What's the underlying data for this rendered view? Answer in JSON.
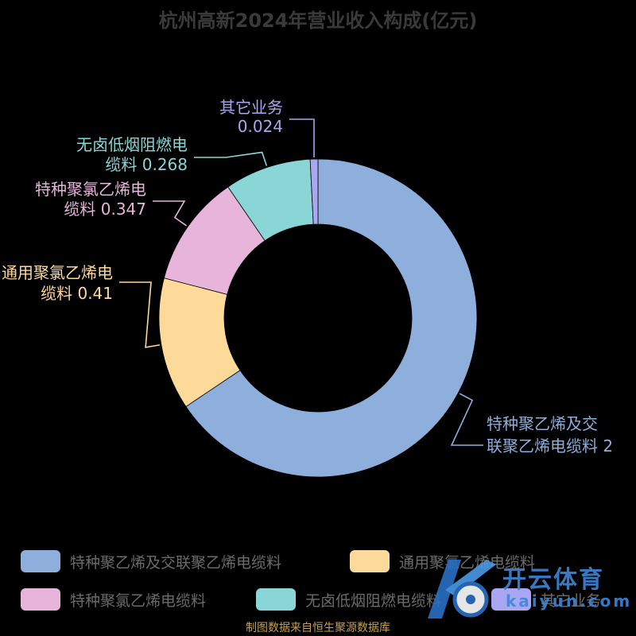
{
  "chart_data": {
    "type": "pie",
    "title": "杭州高新2024年营业收入构成(亿元)",
    "style": "donut",
    "slices": [
      {
        "name": "特种聚乙烯及交联聚乙烯电缆料",
        "value": 2,
        "label_line1": "特种聚乙烯及交",
        "label_line2": "联聚乙烯电缆料 2",
        "color": "#8eaedb"
      },
      {
        "name": "通用聚氯乙烯电缆料",
        "value": 0.41,
        "label_line1": "通用聚氯乙烯电",
        "label_line2": "缆料 0.41",
        "color": "#fdd99a"
      },
      {
        "name": "特种聚氯乙烯电缆料",
        "value": 0.347,
        "label_line1": "特种聚氯乙烯电",
        "label_line2": "缆料 0.347",
        "color": "#e6b5d9"
      },
      {
        "name": "无卤低烟阻燃电缆料",
        "value": 0.268,
        "label_line1": "无卤低烟阻燃电",
        "label_line2": "缆料 0.268",
        "color": "#8ad6d6"
      },
      {
        "name": "其它业务",
        "value": 0.024,
        "label_line1": "其它业务",
        "label_line2": "0.024",
        "color": "#a9a6f2"
      }
    ],
    "legend_position": "bottom"
  },
  "footer": {
    "source": "制图数据来自恒生聚源数据库"
  },
  "watermark": {
    "brand": "开云体育",
    "domain": "kaiyun.com"
  }
}
